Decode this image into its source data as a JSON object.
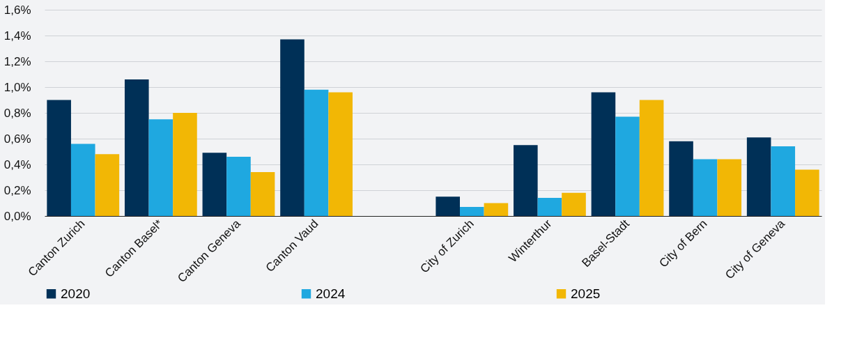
{
  "chart_data": {
    "type": "bar",
    "categories": [
      "Canton Zurich",
      "Canton Basel*",
      "Canton Geneva",
      "Canton Vaud",
      null,
      "City of Zurich",
      "Winterthur",
      "Basel-Stadt",
      "City of Bern",
      "City of Geneva"
    ],
    "series": [
      {
        "name": "2020",
        "color": "#003057",
        "values": [
          0.9,
          1.06,
          0.49,
          1.37,
          null,
          0.15,
          0.55,
          0.96,
          0.58,
          0.61
        ]
      },
      {
        "name": "2024",
        "color": "#1fa8e0",
        "values": [
          0.56,
          0.75,
          0.46,
          0.98,
          null,
          0.07,
          0.14,
          0.77,
          0.44,
          0.54
        ]
      },
      {
        "name": "2025",
        "color": "#f2b705",
        "values": [
          0.48,
          0.8,
          0.34,
          0.96,
          null,
          0.1,
          0.18,
          0.9,
          0.44,
          0.36
        ]
      }
    ],
    "ylim": [
      0,
      1.6
    ],
    "yticks": [
      {
        "value": 0,
        "label": "0,0%"
      },
      {
        "value": 0.2,
        "label": "0,2%"
      },
      {
        "value": 0.4,
        "label": "0,4%"
      },
      {
        "value": 0.6,
        "label": "0,6%"
      },
      {
        "value": 0.8,
        "label": "0,8%"
      },
      {
        "value": 1.0,
        "label": "1,0%"
      },
      {
        "value": 1.2,
        "label": "1,2%"
      },
      {
        "value": 1.4,
        "label": "1,4%"
      },
      {
        "value": 1.6,
        "label": "1,6%"
      }
    ],
    "grid": "y",
    "legend": "bottom"
  }
}
